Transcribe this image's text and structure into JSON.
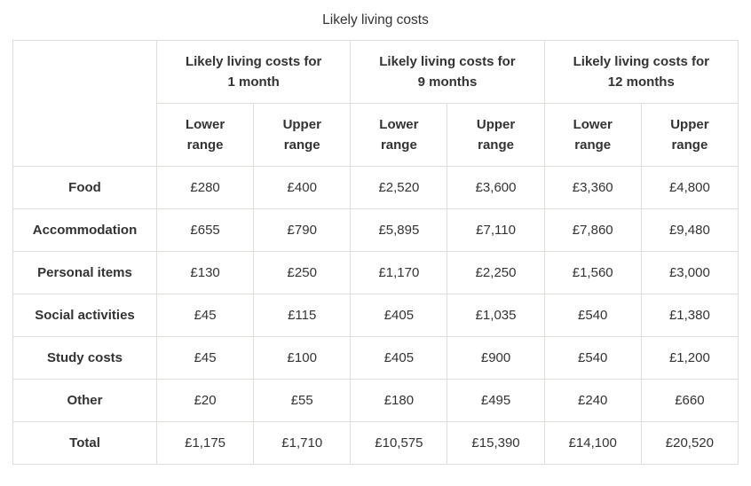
{
  "title": "Likely living costs",
  "colors": {
    "text": "#333333",
    "border": "#deded8",
    "background": "#ffffff"
  },
  "table": {
    "groups": [
      {
        "label": "Likely living costs for 1 month",
        "lines": [
          "Likely living costs for",
          "1 month"
        ]
      },
      {
        "label": "Likely living costs for 9 months",
        "lines": [
          "Likely living costs for",
          "9 months"
        ]
      },
      {
        "label": "Likely living costs for 12 months",
        "lines": [
          "Likely living costs for",
          "12 months"
        ]
      }
    ],
    "sub": {
      "lower": {
        "label": "Lower range",
        "lines": [
          "Lower",
          "range"
        ]
      },
      "upper": {
        "label": "Upper range",
        "lines": [
          "Upper",
          "range"
        ]
      }
    },
    "rows": [
      {
        "label": "Food",
        "values": [
          "£280",
          "£400",
          "£2,520",
          "£3,600",
          "£3,360",
          "£4,800"
        ]
      },
      {
        "label": "Accommodation",
        "values": [
          "£655",
          "£790",
          "£5,895",
          "£7,110",
          "£7,860",
          "£9,480"
        ]
      },
      {
        "label": "Personal items",
        "values": [
          "£130",
          "£250",
          "£1,170",
          "£2,250",
          "£1,560",
          "£3,000"
        ]
      },
      {
        "label": "Social activities",
        "values": [
          "£45",
          "£115",
          "£405",
          "£1,035",
          "£540",
          "£1,380"
        ]
      },
      {
        "label": "Study costs",
        "values": [
          "£45",
          "£100",
          "£405",
          "£900",
          "£540",
          "£1,200"
        ]
      },
      {
        "label": "Other",
        "values": [
          "£20",
          "£55",
          "£180",
          "£495",
          "£240",
          "£660"
        ]
      },
      {
        "label": "Total",
        "values": [
          "£1,175",
          "£1,710",
          "£10,575",
          "£15,390",
          "£14,100",
          "£20,520"
        ]
      }
    ]
  },
  "chart_data": {
    "type": "table",
    "title": "Likely living costs",
    "currency": "GBP",
    "column_groups": [
      {
        "label": "Likely living costs for 1 month",
        "columns": [
          "Lower range",
          "Upper range"
        ]
      },
      {
        "label": "Likely living costs for 9 months",
        "columns": [
          "Lower range",
          "Upper range"
        ]
      },
      {
        "label": "Likely living costs for 12 months",
        "columns": [
          "Lower range",
          "Upper range"
        ]
      }
    ],
    "row_labels": [
      "Food",
      "Accommodation",
      "Personal items",
      "Social activities",
      "Study costs",
      "Other",
      "Total"
    ],
    "values": [
      [
        280,
        400,
        2520,
        3600,
        3360,
        4800
      ],
      [
        655,
        790,
        5895,
        7110,
        7860,
        9480
      ],
      [
        130,
        250,
        1170,
        2250,
        1560,
        3000
      ],
      [
        45,
        115,
        405,
        1035,
        540,
        1380
      ],
      [
        45,
        100,
        405,
        900,
        540,
        1200
      ],
      [
        20,
        55,
        180,
        495,
        240,
        660
      ],
      [
        1175,
        1710,
        10575,
        15390,
        14100,
        20520
      ]
    ]
  }
}
